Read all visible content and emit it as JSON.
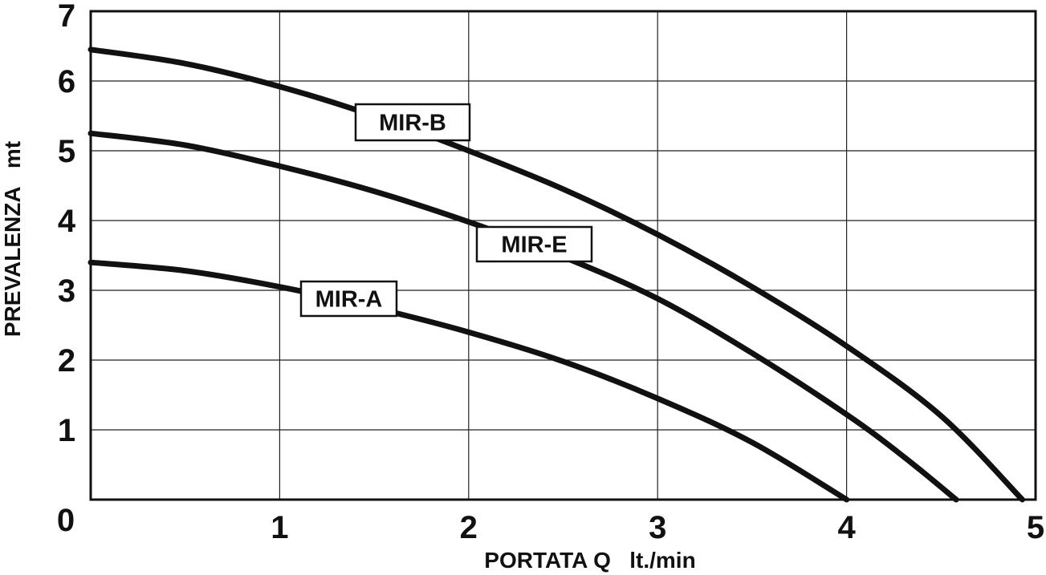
{
  "chart_data": {
    "type": "line",
    "title": "",
    "xlabel": "PORTATA Q   lt./min",
    "ylabel": "PREVALENZA   mt",
    "xlim": [
      0,
      5
    ],
    "ylim": [
      0,
      7
    ],
    "xticks": [
      "0",
      "1",
      "2",
      "3",
      "4",
      "5"
    ],
    "yticks": [
      "1",
      "2",
      "3",
      "4",
      "5",
      "6",
      "7"
    ],
    "grid": true,
    "legend": "inline",
    "series": [
      {
        "name": "MIR-B",
        "x": [
          0,
          0.5,
          1,
          1.5,
          2,
          2.5,
          3,
          3.5,
          4,
          4.5,
          4.93
        ],
        "y": [
          6.45,
          6.25,
          5.92,
          5.5,
          5.0,
          4.45,
          3.8,
          3.05,
          2.2,
          1.2,
          0
        ]
      },
      {
        "name": "MIR-E",
        "x": [
          0,
          0.5,
          1,
          1.5,
          2,
          2.5,
          3,
          3.5,
          4,
          4.3,
          4.58
        ],
        "y": [
          5.25,
          5.08,
          4.78,
          4.42,
          3.98,
          3.48,
          2.88,
          2.1,
          1.22,
          0.62,
          0
        ]
      },
      {
        "name": "MIR-A",
        "x": [
          0,
          0.5,
          1,
          1.5,
          2,
          2.5,
          3,
          3.5,
          4
        ],
        "y": [
          3.4,
          3.28,
          3.05,
          2.75,
          2.4,
          1.98,
          1.45,
          0.82,
          0
        ]
      }
    ]
  }
}
